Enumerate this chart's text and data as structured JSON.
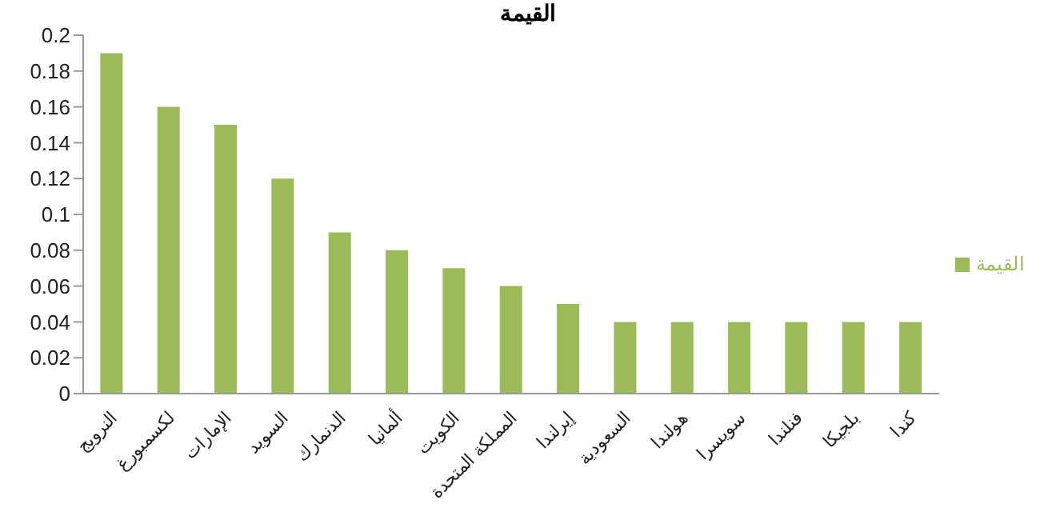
{
  "chart_data": {
    "type": "bar",
    "title": "القيمة",
    "categories": [
      "النرويج",
      "لكسمبورغ",
      "الإمارات",
      "السويد",
      "الدنمارك",
      "ألمانيا",
      "الكويت",
      "المملكة المتحدة",
      "إيرلندا",
      "السعودية",
      "هولندا",
      "سويسرا",
      "فنلندا",
      "بلجيكا",
      "كندا"
    ],
    "series": [
      {
        "name": "القيمة",
        "color": "#9bbb59",
        "values": [
          0.19,
          0.16,
          0.15,
          0.12,
          0.09,
          0.08,
          0.07,
          0.06,
          0.05,
          0.04,
          0.04,
          0.04,
          0.04,
          0.04,
          0.04
        ]
      }
    ],
    "ylim": [
      0,
      0.2
    ],
    "yticks": [
      0,
      0.02,
      0.04,
      0.06,
      0.08,
      0.1,
      0.12,
      0.14,
      0.16,
      0.18,
      0.2
    ],
    "grid": false,
    "legend": "right"
  }
}
